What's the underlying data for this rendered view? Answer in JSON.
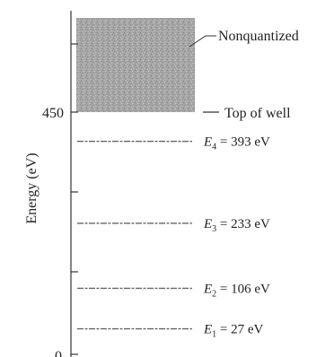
{
  "y_axis": {
    "label": "Energy (eV)",
    "tick_labels": [
      "0",
      "450"
    ]
  },
  "region": {
    "label": "Nonquantized",
    "top_label": "Top of well",
    "top_energy_ev": 450
  },
  "levels": [
    {
      "symbol": "E",
      "subscript": "1",
      "value_text": "= 27 eV",
      "energy_ev": 27
    },
    {
      "symbol": "E",
      "subscript": "2",
      "value_text": "= 106 eV",
      "energy_ev": 106
    },
    {
      "symbol": "E",
      "subscript": "3",
      "value_text": "= 233 eV",
      "energy_ev": 233
    },
    {
      "symbol": "E",
      "subscript": "4",
      "value_text": "= 393 eV",
      "energy_ev": 393
    }
  ],
  "colors": {
    "axis": "#333333",
    "level_line": "#666666",
    "shade": "#a6a6a6"
  }
}
